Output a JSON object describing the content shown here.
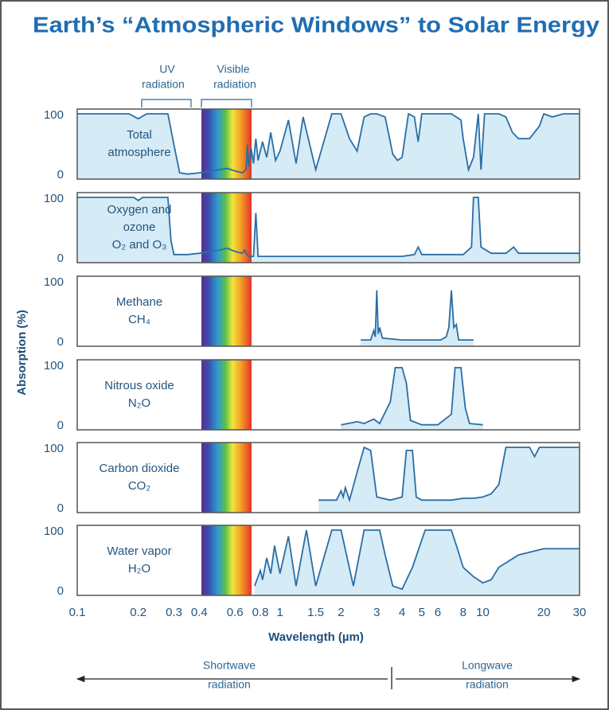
{
  "chart_data": {
    "type": "area",
    "title": "Earth’s “Atmospheric Windows” to Solar Energy",
    "ylabel": "Absorption (%)",
    "xlabel": "Wavelength (µm)",
    "xscale": "log",
    "xlim": [
      0.1,
      30
    ],
    "xticks": [
      0.1,
      0.2,
      0.3,
      0.4,
      0.6,
      0.8,
      1,
      1.5,
      2,
      3,
      4,
      5,
      6,
      8,
      10,
      20,
      30
    ],
    "ylim": [
      0,
      100
    ],
    "yticks": [
      100,
      0
    ],
    "fill_color": "#d5ebf6",
    "line_color": "#2a6ea6",
    "annotations": {
      "uv": [
        "UV",
        "radiation"
      ],
      "visible": [
        "Visible",
        "radiation"
      ],
      "shortwave": [
        "Shortwave",
        "radiation"
      ],
      "longwave": [
        "Longwave",
        "radiation"
      ]
    },
    "panels": [
      {
        "name": [
          "Total",
          "atmosphere"
        ],
        "x": [
          0.1,
          0.18,
          0.2,
          0.22,
          0.28,
          0.3,
          0.32,
          0.35,
          0.4,
          0.5,
          0.55,
          0.6,
          0.65,
          0.68,
          0.69,
          0.7,
          0.72,
          0.74,
          0.76,
          0.78,
          0.82,
          0.86,
          0.9,
          0.95,
          1.0,
          1.1,
          1.2,
          1.3,
          1.5,
          1.8,
          2.0,
          2.2,
          2.4,
          2.6,
          2.8,
          3.0,
          3.3,
          3.6,
          3.8,
          4.0,
          4.3,
          4.6,
          4.8,
          5,
          6,
          7,
          7.8,
          8,
          8.5,
          9,
          9.5,
          9.8,
          10.2,
          12,
          13,
          14,
          15,
          17,
          19,
          20,
          22,
          25,
          30
        ],
        "values": [
          100,
          100,
          92,
          100,
          100,
          50,
          5,
          3,
          5,
          10,
          12,
          8,
          5,
          10,
          50,
          15,
          45,
          20,
          60,
          25,
          55,
          30,
          70,
          25,
          40,
          90,
          20,
          95,
          10,
          100,
          100,
          60,
          40,
          95,
          100,
          100,
          95,
          35,
          25,
          30,
          100,
          95,
          55,
          100,
          100,
          100,
          90,
          60,
          10,
          30,
          100,
          10,
          100,
          100,
          95,
          70,
          60,
          60,
          80,
          100,
          95,
          100,
          100
        ]
      },
      {
        "name": [
          "Oxygen and",
          "ozone",
          "O₂ and O₃"
        ],
        "x": [
          0.1,
          0.19,
          0.2,
          0.21,
          0.28,
          0.29,
          0.3,
          0.35,
          0.4,
          0.5,
          0.55,
          0.6,
          0.65,
          0.67,
          0.68,
          0.7,
          0.74,
          0.76,
          0.78,
          1,
          2,
          4,
          4.6,
          4.8,
          5,
          8,
          8.8,
          9,
          9.5,
          9.8,
          11,
          13,
          14.2,
          15,
          20,
          30
        ],
        "values": [
          100,
          100,
          95,
          100,
          100,
          30,
          8,
          8,
          10,
          15,
          18,
          13,
          10,
          15,
          10,
          5,
          5,
          75,
          5,
          5,
          5,
          5,
          8,
          20,
          8,
          8,
          20,
          100,
          100,
          20,
          10,
          10,
          20,
          10,
          10,
          10
        ]
      },
      {
        "name": [
          "Methane",
          "CH₄"
        ],
        "x": [
          2.5,
          2.8,
          2.9,
          2.95,
          3.0,
          3.05,
          3.1,
          3.2,
          4,
          5,
          6.2,
          6.6,
          6.8,
          7,
          7.2,
          7.4,
          7.6,
          9
        ],
        "values": [
          5,
          5,
          20,
          10,
          85,
          15,
          25,
          8,
          5,
          5,
          5,
          10,
          25,
          85,
          25,
          30,
          5,
          5
        ]
      },
      {
        "name": [
          "Nitrous oxide",
          "N₂O"
        ],
        "x": [
          2,
          2.4,
          2.6,
          2.9,
          3.1,
          3.5,
          3.7,
          4.0,
          4.2,
          4.4,
          5,
          6,
          7,
          7.3,
          7.8,
          8.2,
          8.6,
          10
        ],
        "values": [
          3,
          8,
          5,
          12,
          5,
          40,
          95,
          95,
          70,
          10,
          3,
          3,
          20,
          95,
          95,
          30,
          5,
          3
        ]
      },
      {
        "name": [
          "Carbon dioxide",
          "CO₂"
        ],
        "x": [
          1.55,
          1.9,
          2.0,
          2.05,
          2.1,
          2.2,
          2.4,
          2.6,
          2.8,
          3.0,
          3.5,
          4.0,
          4.2,
          4.5,
          4.7,
          5,
          7,
          8,
          9,
          10,
          11,
          12,
          13,
          17,
          18,
          19,
          30
        ],
        "values": [
          15,
          15,
          30,
          20,
          35,
          15,
          60,
          100,
          95,
          20,
          15,
          20,
          95,
          95,
          20,
          15,
          15,
          18,
          18,
          20,
          25,
          40,
          100,
          100,
          85,
          100,
          100
        ]
      },
      {
        "name": [
          "Water vapor",
          "H₂O"
        ],
        "x": [
          0.75,
          0.8,
          0.82,
          0.86,
          0.9,
          0.94,
          1.0,
          1.1,
          1.2,
          1.35,
          1.5,
          1.8,
          2.0,
          2.3,
          2.6,
          2.8,
          3.1,
          3.3,
          3.6,
          4,
          4.5,
          5.2,
          6,
          7,
          7.5,
          8,
          9,
          10,
          11,
          12,
          15,
          20,
          25,
          30
        ],
        "values": [
          10,
          35,
          20,
          55,
          30,
          75,
          30,
          90,
          10,
          100,
          10,
          100,
          100,
          10,
          100,
          100,
          100,
          60,
          10,
          5,
          40,
          100,
          100,
          100,
          70,
          40,
          25,
          15,
          20,
          40,
          60,
          70,
          70,
          70
        ]
      }
    ]
  }
}
